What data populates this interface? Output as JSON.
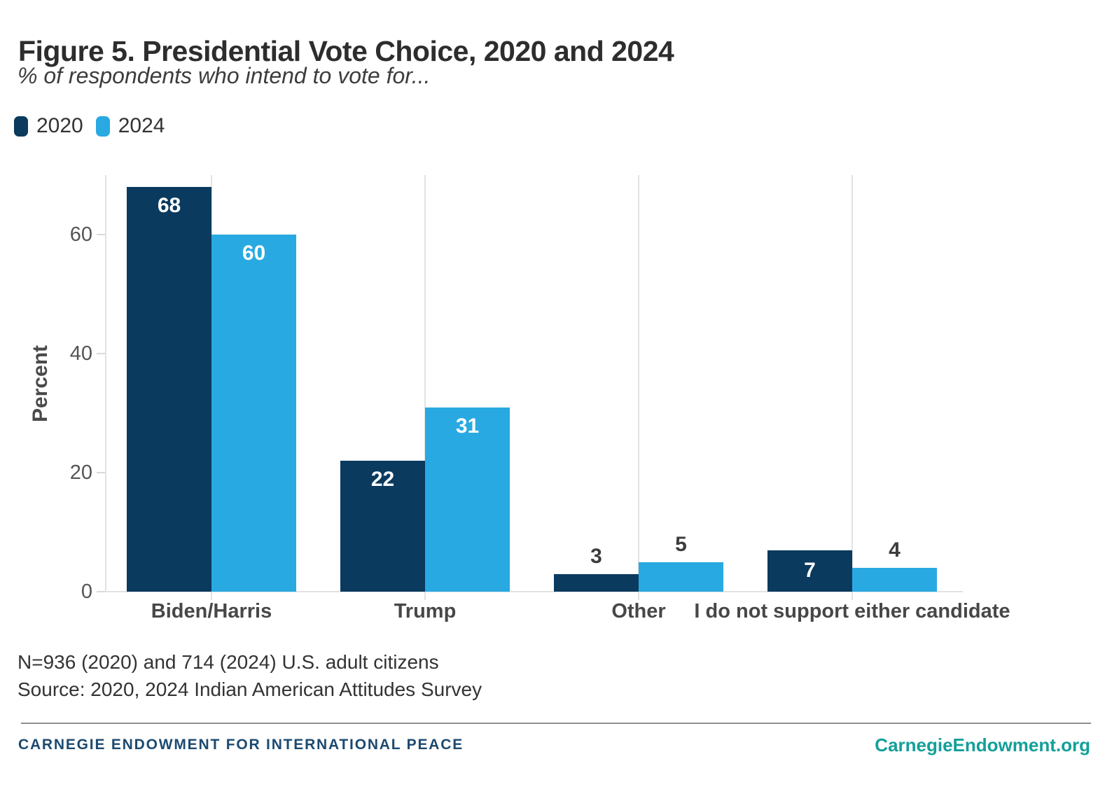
{
  "header": {
    "title": "Figure 5. Presidential Vote Choice, 2020 and 2024",
    "subtitle": "% of respondents who intend to vote for..."
  },
  "chart_data": {
    "type": "bar",
    "title": "Figure 5. Presidential Vote Choice, 2020 and 2024",
    "subtitle": "% of respondents who intend to vote for...",
    "categories": [
      "Biden/Harris",
      "Trump",
      "Other",
      "I do not support either candidate"
    ],
    "series": [
      {
        "name": "2020",
        "color": "#0a3a5e",
        "values": [
          68,
          22,
          3,
          7
        ],
        "value_label_placement": [
          "inside",
          "inside",
          "above",
          "inside"
        ]
      },
      {
        "name": "2024",
        "color": "#29a9e1",
        "values": [
          60,
          31,
          5,
          4
        ],
        "value_label_placement": [
          "inside",
          "inside",
          "above",
          "above"
        ]
      }
    ],
    "xlabel": "",
    "ylabel": "Percent",
    "ylim": [
      0,
      70
    ],
    "yticks": [
      0,
      20,
      40,
      60
    ],
    "grid": {
      "vertical_category_lines": true,
      "horizontal_lines": false
    },
    "legend_position": "top-left",
    "value_labels": true
  },
  "notes": {
    "sample": "N=936 (2020) and 714 (2024) U.S. adult citizens",
    "source": "Source: 2020, 2024 Indian American Attitudes Survey"
  },
  "footer": {
    "brand": "CARNEGIE ENDOWMENT FOR INTERNATIONAL PEACE",
    "site": "CarnegieEndowment.org"
  },
  "colors": {
    "title_text": "#2d2d2d",
    "subtitle_text": "#3d3d3d",
    "legend_text": "#333333",
    "axis_text": "#555555",
    "axis_title_text": "#4a4a4a",
    "category_text": "#474747",
    "value_label_dark": "#3d3d3d",
    "value_label_light": "#ffffff",
    "gridline": "#e2e2e2",
    "tick": "#d9d9d9",
    "notes_text": "#333333",
    "divider": "#8f8f8f",
    "brand_navy": "#1c4a70",
    "site_teal": "#13a099"
  }
}
